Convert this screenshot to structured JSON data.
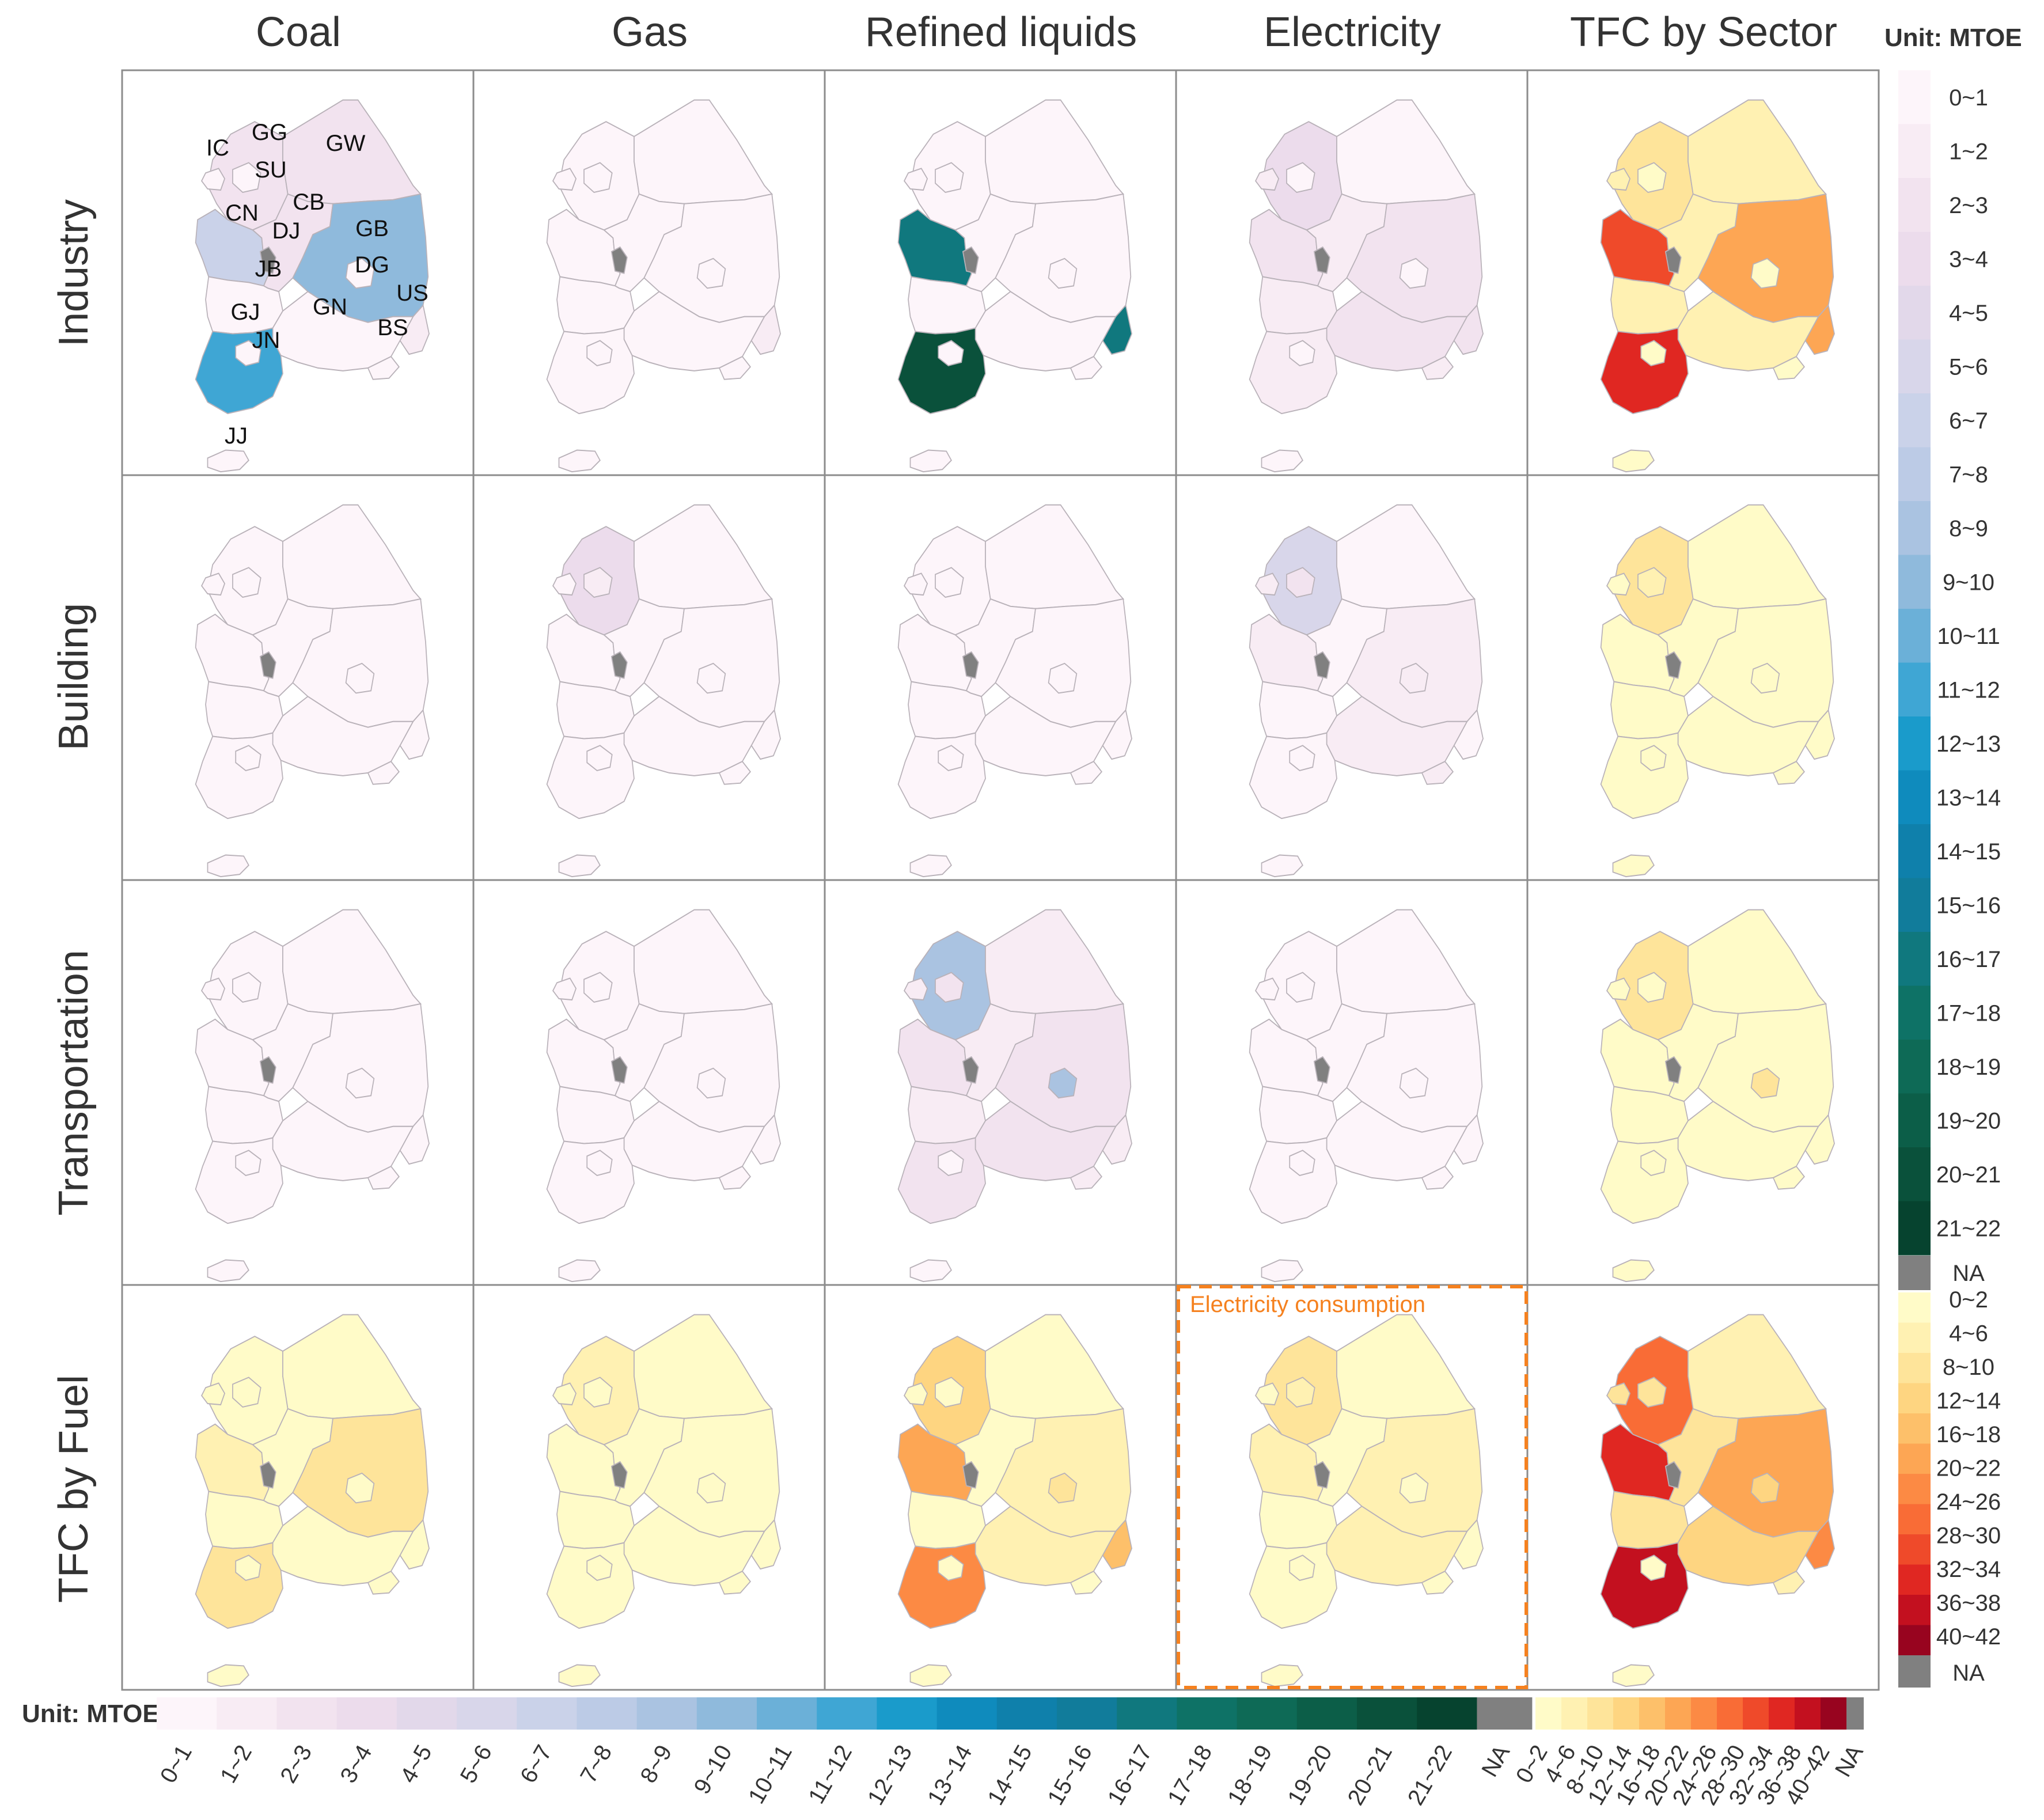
{
  "columns": [
    "Coal",
    "Gas",
    "Refined liquids",
    "Electricity",
    "TFC by Sector"
  ],
  "rows": [
    "Industry",
    "Building",
    "Transportation",
    "TFC by Fuel"
  ],
  "unit_label": "Unit: MTOE",
  "na_label": "NA",
  "annotation": "Electricity consumption",
  "region_codes": [
    "GG",
    "IC",
    "SU",
    "GW",
    "CN",
    "CB",
    "DJ",
    "GB",
    "DG",
    "JB",
    "US",
    "GJ",
    "GN",
    "JN",
    "BS",
    "JJ"
  ],
  "sector_scale": {
    "labels": [
      "0~1",
      "1~2",
      "2~3",
      "3~4",
      "4~5",
      "5~6",
      "6~7",
      "7~8",
      "8~9",
      "9~10",
      "10~11",
      "11~12",
      "12~13",
      "13~14",
      "14~15",
      "15~16",
      "16~17",
      "17~18",
      "18~19",
      "19~20",
      "20~21",
      "21~22"
    ],
    "colors": [
      "#fdf5fa",
      "#f8ecf4",
      "#f2e3ef",
      "#ecdcec",
      "#e2d8ea",
      "#d8d6ea",
      "#cad2e9",
      "#bccbe6",
      "#aac3e1",
      "#8fbadc",
      "#6bb0d8",
      "#3fa6d4",
      "#1a9bcb",
      "#0f8bbd",
      "#0f80ab",
      "#117c9b",
      "#10787e",
      "#0e7266",
      "#0e6a56",
      "#0c5e48",
      "#0a513b",
      "#06432f"
    ],
    "na_color": "#808080"
  },
  "fuel_scale": {
    "labels": [
      "0~2",
      "4~6",
      "8~10",
      "12~14",
      "16~18",
      "20~22",
      "24~26",
      "28~30",
      "32~34",
      "36~38",
      "40~42"
    ],
    "colors": [
      "#fffbc8",
      "#fff1b2",
      "#fee49a",
      "#fed581",
      "#fdc06a",
      "#fda654",
      "#fc8a44",
      "#f96c36",
      "#ef4a2a",
      "#e02722",
      "#c3101f",
      "#98041f"
    ],
    "na_color": "#808080"
  },
  "maps": [
    {
      "row": "Industry",
      "column": "Coal",
      "region_values": {
        "GG": 2.3,
        "IC": 0.3,
        "SU": 0.2,
        "GW": 2.6,
        "CN": 6.3,
        "CB": 2.4,
        "DJ": 0.5,
        "GB": 9.5,
        "DG": 0.4,
        "JB": 0.6,
        "US": 1.0,
        "GJ": 0.3,
        "GN": 0.4,
        "JN": 11.3,
        "BS": 0.3,
        "JJ": 0.1
      }
    },
    {
      "row": "Industry",
      "column": "Gas",
      "region_values": {
        "GG": 0.8,
        "IC": 0.5,
        "SU": 0.3,
        "GW": 0.2,
        "CN": 0.6,
        "CB": 0.3,
        "DJ": 0.1,
        "GB": 0.6,
        "DG": 0.3,
        "JB": 0.4,
        "US": 1.3,
        "GJ": 0.1,
        "GN": 0.5,
        "JN": 0.7,
        "BS": 0.3,
        "JJ": 0.0
      }
    },
    {
      "row": "Industry",
      "column": "Refined liquids",
      "region_values": {
        "GG": 0.5,
        "IC": 0.6,
        "SU": 0.1,
        "GW": 0.3,
        "CN": 16.5,
        "CB": 0.3,
        "DJ": 0.1,
        "GB": 0.6,
        "DG": 0.1,
        "JB": 0.7,
        "US": 16.5,
        "GJ": 0.1,
        "GN": 0.6,
        "JN": 20.5,
        "BS": 0.2,
        "JJ": 0.1
      }
    },
    {
      "row": "Industry",
      "column": "Electricity",
      "region_values": {
        "GG": 3.5,
        "IC": 1.2,
        "SU": 0.8,
        "GW": 0.9,
        "CN": 2.3,
        "CB": 1.6,
        "DJ": 0.5,
        "GB": 2.7,
        "DG": 0.6,
        "JB": 1.3,
        "US": 2.4,
        "GJ": 0.4,
        "GN": 2.0,
        "JN": 1.9,
        "BS": 1.0,
        "JJ": 0.3
      }
    },
    {
      "row": "Industry",
      "column": "TFC by Sector",
      "region_values": {
        "GG": 11,
        "IC": 5,
        "SU": 2,
        "GW": 5,
        "CN": 32,
        "CB": 5,
        "DJ": 1,
        "GB": 20,
        "DG": 2,
        "JB": 4,
        "US": 22,
        "GJ": 1,
        "GN": 5,
        "JN": 38,
        "BS": 3,
        "JJ": 1
      }
    },
    {
      "row": "Building",
      "column": "Coal",
      "region_values": {
        "GG": 0.1,
        "IC": 0.0,
        "SU": 0.0,
        "GW": 0.1,
        "CN": 0.0,
        "CB": 0.0,
        "DJ": 0.0,
        "GB": 0.0,
        "DG": 0.0,
        "JB": 0.0,
        "US": 0.0,
        "GJ": 0.0,
        "GN": 0.0,
        "JN": 0.0,
        "BS": 0.0,
        "JJ": 0.0
      }
    },
    {
      "row": "Building",
      "column": "Gas",
      "region_values": {
        "GG": 3.5,
        "IC": 0.9,
        "SU": 1.8,
        "GW": 0.3,
        "CN": 0.5,
        "CB": 0.4,
        "DJ": 0.3,
        "GB": 0.6,
        "DG": 0.5,
        "JB": 0.4,
        "US": 0.3,
        "GJ": 0.3,
        "GN": 0.6,
        "JN": 0.3,
        "BS": 0.6,
        "JJ": 0.1
      }
    },
    {
      "row": "Building",
      "column": "Refined liquids",
      "region_values": {
        "GG": 0.9,
        "IC": 0.2,
        "SU": 0.3,
        "GW": 0.4,
        "CN": 0.5,
        "CB": 0.4,
        "DJ": 0.1,
        "GB": 0.6,
        "DG": 0.2,
        "JB": 0.4,
        "US": 0.1,
        "GJ": 0.1,
        "GN": 0.5,
        "JN": 0.5,
        "BS": 0.2,
        "JJ": 0.2
      }
    },
    {
      "row": "Building",
      "column": "Electricity",
      "region_values": {
        "GG": 5.5,
        "IC": 1.1,
        "SU": 2.5,
        "GW": 0.7,
        "CN": 1.2,
        "CB": 0.8,
        "DJ": 0.6,
        "GB": 1.4,
        "DG": 1.0,
        "JB": 0.9,
        "US": 0.5,
        "GJ": 0.5,
        "GN": 1.4,
        "JN": 0.9,
        "BS": 1.3,
        "JJ": 0.5
      }
    },
    {
      "row": "Building",
      "column": "TFC by Sector",
      "region_values": {
        "GG": 11,
        "IC": 2,
        "SU": 5,
        "GW": 1,
        "CN": 2,
        "CB": 2,
        "DJ": 1,
        "GB": 3,
        "DG": 2,
        "JB": 2,
        "US": 1,
        "GJ": 1,
        "GN": 3,
        "JN": 2,
        "BS": 2,
        "JJ": 1
      }
    },
    {
      "row": "Transportation",
      "column": "Coal",
      "region_values": {
        "GG": 0.0,
        "IC": 0.0,
        "SU": 0.0,
        "GW": 0.0,
        "CN": 0.0,
        "CB": 0.0,
        "DJ": 0.0,
        "GB": 0.0,
        "DG": 0.0,
        "JB": 0.0,
        "US": 0.0,
        "GJ": 0.0,
        "GN": 0.0,
        "JN": 0.0,
        "BS": 0.0,
        "JJ": 0.0
      }
    },
    {
      "row": "Transportation",
      "column": "Gas",
      "region_values": {
        "GG": 0.4,
        "IC": 0.1,
        "SU": 0.2,
        "GW": 0.1,
        "CN": 0.1,
        "CB": 0.1,
        "DJ": 0.0,
        "GB": 0.1,
        "DG": 0.1,
        "JB": 0.1,
        "US": 0.0,
        "GJ": 0.0,
        "GN": 0.1,
        "JN": 0.1,
        "BS": 0.1,
        "JJ": 0.0
      }
    },
    {
      "row": "Transportation",
      "column": "Refined liquids",
      "region_values": {
        "GG": 8.5,
        "IC": 1.8,
        "SU": 2.2,
        "GW": 1.4,
        "CN": 2.4,
        "CB": 1.6,
        "DJ": 0.6,
        "GB": 2.3,
        "DG": 8.3,
        "JB": 1.6,
        "US": 1.3,
        "GJ": 0.5,
        "GN": 2.4,
        "JN": 2.3,
        "BS": 1.4,
        "JJ": 0.7
      }
    },
    {
      "row": "Transportation",
      "column": "Electricity",
      "region_values": {
        "GG": 0.1,
        "IC": 0.0,
        "SU": 0.1,
        "GW": 0.0,
        "CN": 0.0,
        "CB": 0.0,
        "DJ": 0.0,
        "GB": 0.0,
        "DG": 0.0,
        "JB": 0.0,
        "US": 0.0,
        "GJ": 0.0,
        "GN": 0.0,
        "JN": 0.0,
        "BS": 0.0,
        "JJ": 0.0
      }
    },
    {
      "row": "Transportation",
      "column": "TFC by Sector",
      "region_values": {
        "GG": 9,
        "IC": 2,
        "SU": 2,
        "GW": 1,
        "CN": 3,
        "CB": 2,
        "DJ": 1,
        "GB": 3,
        "DG": 9,
        "JB": 2,
        "US": 1,
        "GJ": 1,
        "GN": 3,
        "JN": 3,
        "BS": 2,
        "JJ": 1
      }
    },
    {
      "row": "TFC by Fuel",
      "column": "Coal",
      "region_values": {
        "GG": 2,
        "IC": 1,
        "SU": 0,
        "GW": 3,
        "CN": 7,
        "CB": 3,
        "DJ": 1,
        "GB": 10,
        "DG": 1,
        "JB": 1,
        "US": 1,
        "GJ": 1,
        "GN": 1,
        "JN": 11,
        "BS": 1,
        "JJ": 0
      }
    },
    {
      "row": "TFC by Fuel",
      "column": "Gas",
      "region_values": {
        "GG": 5,
        "IC": 2,
        "SU": 2,
        "GW": 1,
        "CN": 1,
        "CB": 1,
        "DJ": 1,
        "GB": 2,
        "DG": 1,
        "JB": 1,
        "US": 2,
        "GJ": 1,
        "GN": 2,
        "JN": 1,
        "BS": 1,
        "JJ": 0
      }
    },
    {
      "row": "TFC by Fuel",
      "column": "Refined liquids",
      "region_values": {
        "GG": 12,
        "IC": 3,
        "SU": 3,
        "GW": 3,
        "CN": 22,
        "CB": 3,
        "DJ": 1,
        "GB": 4,
        "DG": 9,
        "JB": 3,
        "US": 19,
        "GJ": 1,
        "GN": 4,
        "JN": 25,
        "BS": 3,
        "JJ": 1
      }
    },
    {
      "row": "TFC by Fuel",
      "column": "Electricity",
      "region_values": {
        "GG": 11,
        "IC": 3,
        "SU": 4,
        "GW": 2,
        "CN": 5,
        "CB": 3,
        "DJ": 2,
        "GB": 5,
        "DG": 2,
        "JB": 3,
        "US": 3,
        "GJ": 1,
        "GN": 4,
        "JN": 3,
        "BS": 3,
        "JJ": 1
      }
    },
    {
      "row": "TFC by Fuel",
      "column": "TFC by Sector",
      "region_values": {
        "GG": 31,
        "IC": 9,
        "SU": 10,
        "GW": 7,
        "CN": 37,
        "CB": 8,
        "DJ": 3,
        "GB": 23,
        "DG": 13,
        "JB": 8,
        "US": 25,
        "GJ": 3,
        "GN": 12,
        "JN": 43,
        "BS": 7,
        "JJ": 3
      }
    }
  ]
}
